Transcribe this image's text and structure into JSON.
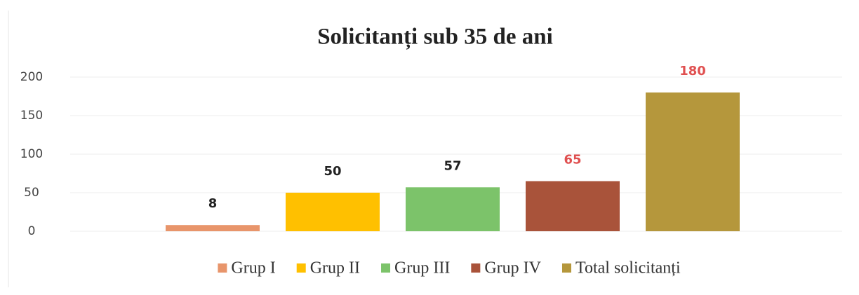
{
  "chart_data": {
    "type": "bar",
    "title": "Solicitanți sub 35 de ani",
    "series": [
      {
        "name": "Grup I",
        "color": "#e8956b",
        "label_color": "#222222",
        "values": [
          8
        ]
      },
      {
        "name": "Grup II",
        "color": "#ffc000",
        "label_color": "#222222",
        "values": [
          50
        ]
      },
      {
        "name": "Grup III",
        "color": "#7cc36a",
        "label_color": "#222222",
        "values": [
          57
        ]
      },
      {
        "name": "Grup IV",
        "color": "#a9533a",
        "label_color": "#e05050",
        "values": [
          65
        ]
      },
      {
        "name": "Total solicitanți",
        "color": "#b5973c",
        "label_color": "#e05050",
        "values": [
          180
        ]
      }
    ],
    "ylim": [
      0,
      200
    ],
    "yticks": [
      0,
      50,
      100,
      150,
      200
    ],
    "grid": true,
    "legend": "bottom"
  }
}
